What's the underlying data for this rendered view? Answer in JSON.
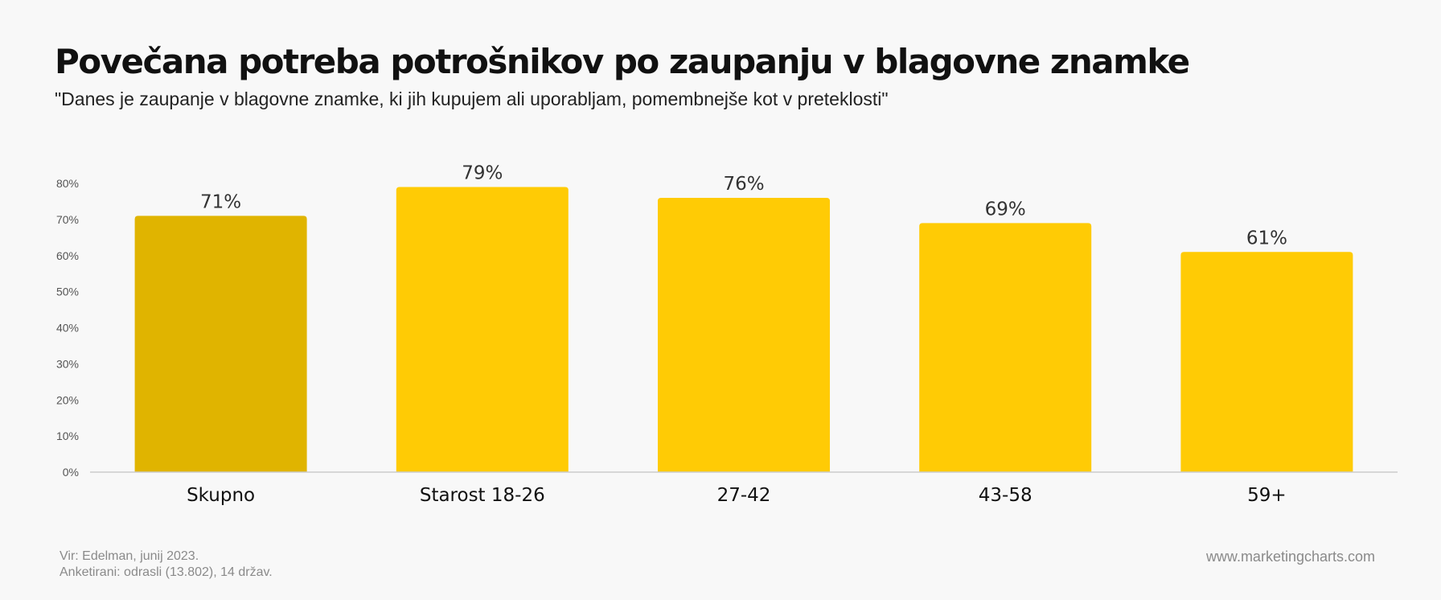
{
  "header": {
    "title": "Povečana potreba potrošnikov po zaupanju v blagovne znamke",
    "subtitle": "\"Danes je zaupanje v blagovne znamke, ki jih kupujem ali uporabljam, pomembnejše kot v preteklosti\""
  },
  "footer": {
    "source_line1": "Vir: Edelman, junij 2023.",
    "source_line2": "Anketirani: odrasli (13.802), 14 držav.",
    "brand": "www.marketingcharts.com"
  },
  "colors": {
    "highlight_bar": "#e0b400",
    "bar": "#ffcb05",
    "axis": "#cccccc",
    "tick_text": "#555555",
    "label_text": "#333333"
  },
  "chart_data": {
    "type": "bar",
    "categories": [
      "Skupno",
      "Starost 18-26",
      "27-42",
      "43-58",
      "59+"
    ],
    "values": [
      71,
      79,
      76,
      69,
      61
    ],
    "value_labels": [
      "71%",
      "79%",
      "76%",
      "69%",
      "61%"
    ],
    "yticks": [
      "0%",
      "10%",
      "20%",
      "30%",
      "40%",
      "50%",
      "60%",
      "70%",
      "80%"
    ],
    "ylim": [
      0,
      80
    ],
    "highlight_index": 0,
    "grid": false,
    "legend": "none"
  }
}
